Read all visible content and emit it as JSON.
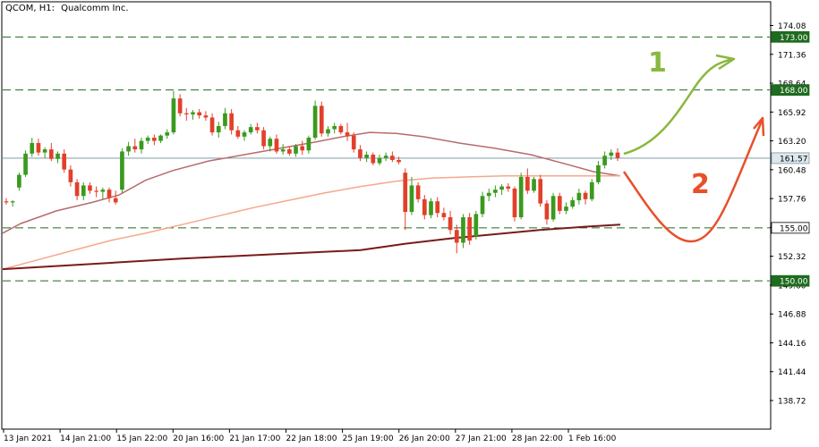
{
  "header": {
    "symbol": "QCOM, H1:",
    "company": "Qualcomm Inc."
  },
  "chart_data": {
    "type": "candlestick",
    "ylim": [
      136.0,
      176.0
    ],
    "y_ticks": [
      "174.08",
      "171.36",
      "168.64",
      "165.92",
      "163.20",
      "160.48",
      "157.76",
      "155.04",
      "152.32",
      "149.60",
      "146.88",
      "144.16",
      "141.44",
      "138.72"
    ],
    "x_ticks": [
      "13 Jan 2021",
      "14 Jan 21:00",
      "15 Jan 22:00",
      "20 Jan 16:00",
      "21 Jan 17:00",
      "22 Jan 18:00",
      "25 Jan 19:00",
      "26 Jan 20:00",
      "27 Jan 21:00",
      "28 Jan 22:00",
      "1 Feb 16:00"
    ],
    "level_lines": [
      173.0,
      168.0,
      155.0,
      150.0
    ],
    "price_labels": [
      {
        "text": "173.00",
        "value": 173.0,
        "style": "level"
      },
      {
        "text": "168.00",
        "value": 168.0,
        "style": "level"
      },
      {
        "text": "161.57",
        "value": 161.57,
        "style": "current"
      },
      {
        "text": "155.00",
        "value": 155.0,
        "style": "plain"
      },
      {
        "text": "150.00",
        "value": 150.0,
        "style": "level"
      }
    ],
    "current_price": 161.57,
    "bars": [
      [
        157.5,
        157.8,
        157.2,
        157.4
      ],
      [
        157.4,
        157.6,
        157.0,
        157.5
      ],
      [
        158.8,
        160.2,
        158.5,
        160.0
      ],
      [
        160.0,
        162.3,
        159.8,
        162.0
      ],
      [
        162.0,
        163.5,
        161.7,
        163.0
      ],
      [
        163.0,
        163.4,
        161.8,
        162.1
      ],
      [
        162.1,
        162.6,
        161.6,
        162.4
      ],
      [
        162.4,
        163.0,
        161.3,
        161.5
      ],
      [
        161.5,
        162.2,
        161.1,
        162.0
      ],
      [
        162.0,
        162.4,
        160.2,
        160.5
      ],
      [
        160.5,
        160.9,
        158.9,
        159.3
      ],
      [
        159.3,
        159.6,
        157.6,
        158.0
      ],
      [
        158.0,
        159.3,
        157.6,
        159.0
      ],
      [
        159.0,
        159.3,
        158.2,
        158.5
      ],
      [
        158.5,
        158.9,
        157.9,
        158.4
      ],
      [
        158.4,
        158.8,
        157.7,
        158.6
      ],
      [
        158.6,
        158.8,
        157.4,
        157.8
      ],
      [
        157.8,
        158.5,
        157.2,
        157.4
      ],
      [
        158.6,
        162.5,
        158.3,
        162.2
      ],
      [
        162.2,
        163.1,
        161.8,
        162.7
      ],
      [
        162.7,
        163.4,
        162.1,
        162.4
      ],
      [
        162.4,
        163.5,
        162.0,
        163.2
      ],
      [
        163.2,
        163.7,
        162.9,
        163.5
      ],
      [
        163.5,
        163.8,
        162.8,
        163.2
      ],
      [
        163.2,
        163.8,
        163.0,
        163.7
      ],
      [
        163.7,
        164.3,
        163.4,
        164.0
      ],
      [
        164.0,
        167.9,
        163.8,
        167.2
      ],
      [
        167.2,
        167.6,
        165.5,
        165.8
      ],
      [
        165.8,
        166.3,
        165.1,
        165.7
      ],
      [
        165.7,
        166.1,
        165.2,
        165.9
      ],
      [
        165.9,
        166.2,
        165.3,
        165.6
      ],
      [
        165.6,
        166.0,
        165.1,
        165.4
      ],
      [
        165.4,
        165.8,
        163.7,
        164.0
      ],
      [
        164.0,
        165.0,
        163.5,
        164.6
      ],
      [
        164.6,
        166.3,
        164.3,
        165.8
      ],
      [
        165.8,
        166.2,
        163.8,
        164.2
      ],
      [
        164.2,
        164.6,
        163.4,
        163.6
      ],
      [
        163.6,
        164.2,
        163.2,
        164.0
      ],
      [
        164.0,
        164.8,
        163.8,
        164.5
      ],
      [
        164.5,
        164.9,
        163.9,
        164.2
      ],
      [
        164.2,
        164.5,
        162.4,
        162.7
      ],
      [
        162.7,
        163.6,
        162.2,
        163.4
      ],
      [
        163.4,
        163.8,
        162.0,
        162.2
      ],
      [
        162.2,
        162.9,
        161.9,
        162.4
      ],
      [
        162.4,
        162.7,
        161.8,
        162.0
      ],
      [
        162.0,
        162.9,
        161.7,
        162.7
      ],
      [
        162.7,
        163.2,
        161.9,
        162.3
      ],
      [
        162.3,
        163.7,
        162.0,
        163.5
      ],
      [
        163.5,
        167.0,
        163.3,
        166.5
      ],
      [
        166.5,
        166.9,
        163.6,
        163.9
      ],
      [
        163.9,
        164.6,
        163.6,
        164.3
      ],
      [
        164.3,
        164.9,
        163.9,
        164.6
      ],
      [
        164.6,
        164.8,
        163.8,
        164.0
      ],
      [
        164.0,
        164.9,
        163.2,
        163.7
      ],
      [
        163.7,
        164.0,
        162.1,
        162.4
      ],
      [
        162.4,
        162.8,
        161.3,
        161.6
      ],
      [
        161.6,
        162.2,
        161.2,
        161.9
      ],
      [
        161.9,
        162.1,
        160.9,
        161.1
      ],
      [
        161.1,
        161.9,
        160.9,
        161.6
      ],
      [
        161.6,
        162.1,
        161.3,
        161.8
      ],
      [
        161.8,
        162.2,
        161.2,
        161.4
      ],
      [
        161.4,
        161.7,
        161.0,
        161.2
      ],
      [
        160.2,
        160.6,
        154.8,
        156.5
      ],
      [
        156.5,
        159.8,
        156.2,
        159.0
      ],
      [
        159.0,
        159.3,
        157.4,
        157.7
      ],
      [
        157.7,
        158.1,
        155.8,
        156.2
      ],
      [
        156.2,
        157.8,
        155.9,
        157.5
      ],
      [
        157.5,
        157.9,
        156.0,
        156.4
      ],
      [
        156.4,
        156.9,
        155.7,
        156.0
      ],
      [
        156.0,
        156.6,
        154.4,
        154.8
      ],
      [
        154.8,
        155.3,
        152.6,
        153.6
      ],
      [
        153.6,
        156.3,
        153.1,
        156.0
      ],
      [
        156.0,
        156.4,
        153.4,
        153.8
      ],
      [
        154.2,
        156.6,
        153.9,
        156.3
      ],
      [
        156.3,
        158.4,
        156.0,
        158.0
      ],
      [
        158.0,
        158.7,
        157.5,
        158.3
      ],
      [
        158.3,
        159.0,
        157.9,
        158.6
      ],
      [
        158.6,
        159.1,
        158.1,
        158.9
      ],
      [
        158.9,
        159.2,
        158.4,
        158.7
      ],
      [
        158.7,
        158.9,
        155.6,
        156.0
      ],
      [
        156.0,
        160.2,
        155.8,
        159.8
      ],
      [
        159.8,
        160.6,
        158.2,
        158.5
      ],
      [
        158.5,
        159.8,
        158.3,
        159.6
      ],
      [
        159.6,
        160.0,
        157.0,
        157.3
      ],
      [
        157.3,
        157.6,
        155.3,
        155.8
      ],
      [
        155.8,
        158.3,
        155.6,
        158.0
      ],
      [
        158.0,
        158.3,
        156.3,
        156.6
      ],
      [
        156.6,
        157.4,
        156.3,
        157.0
      ],
      [
        157.0,
        157.9,
        156.8,
        157.6
      ],
      [
        157.6,
        158.7,
        157.2,
        158.3
      ],
      [
        158.3,
        158.5,
        157.2,
        157.7
      ],
      [
        157.7,
        159.6,
        157.5,
        159.3
      ],
      [
        159.3,
        161.3,
        159.1,
        160.9
      ],
      [
        160.9,
        162.2,
        160.6,
        161.8
      ],
      [
        161.8,
        162.4,
        161.4,
        162.1
      ],
      [
        162.1,
        162.5,
        161.3,
        161.6
      ]
    ],
    "series": [
      {
        "color": "#b86b6b",
        "values": [
          [
            0,
            154.5
          ],
          [
            20,
            155.4
          ],
          [
            60,
            156.6
          ],
          [
            100,
            157.4
          ],
          [
            130,
            158.1
          ],
          [
            160,
            159.5
          ],
          [
            190,
            160.4
          ],
          [
            230,
            161.3
          ],
          [
            270,
            161.9
          ],
          [
            310,
            162.5
          ],
          [
            350,
            163.1
          ],
          [
            380,
            163.6
          ],
          [
            410,
            164.0
          ],
          [
            440,
            163.9
          ],
          [
            470,
            163.6
          ],
          [
            510,
            163.0
          ],
          [
            550,
            162.5
          ],
          [
            590,
            161.9
          ],
          [
            630,
            161.0
          ],
          [
            660,
            160.3
          ],
          [
            690,
            159.9
          ]
        ]
      },
      {
        "color": "#f5a88a",
        "values": [
          [
            0,
            151.1
          ],
          [
            40,
            152.0
          ],
          [
            80,
            152.9
          ],
          [
            120,
            153.8
          ],
          [
            160,
            154.5
          ],
          [
            200,
            155.3
          ],
          [
            240,
            156.1
          ],
          [
            280,
            156.9
          ],
          [
            320,
            157.6
          ],
          [
            360,
            158.3
          ],
          [
            400,
            158.9
          ],
          [
            440,
            159.4
          ],
          [
            480,
            159.7
          ],
          [
            520,
            159.8
          ],
          [
            560,
            159.9
          ],
          [
            600,
            159.9
          ],
          [
            640,
            159.9
          ],
          [
            690,
            159.9
          ]
        ]
      },
      {
        "color": "#7a1a1a",
        "values": [
          [
            0,
            151.1
          ],
          [
            100,
            151.6
          ],
          [
            200,
            152.1
          ],
          [
            300,
            152.5
          ],
          [
            400,
            152.9
          ],
          [
            450,
            153.5
          ],
          [
            500,
            154.0
          ],
          [
            550,
            154.4
          ],
          [
            600,
            154.8
          ],
          [
            650,
            155.1
          ],
          [
            690,
            155.3
          ]
        ]
      }
    ],
    "annotations": {
      "scenario_1_label": "1",
      "scenario_2_label": "2",
      "scenario_1_color": "#8ab83e",
      "scenario_2_color": "#e8502a"
    },
    "colors": {
      "bull": "#3a9a1e",
      "bear": "#e2402a",
      "level": "#1f6b1f"
    }
  }
}
